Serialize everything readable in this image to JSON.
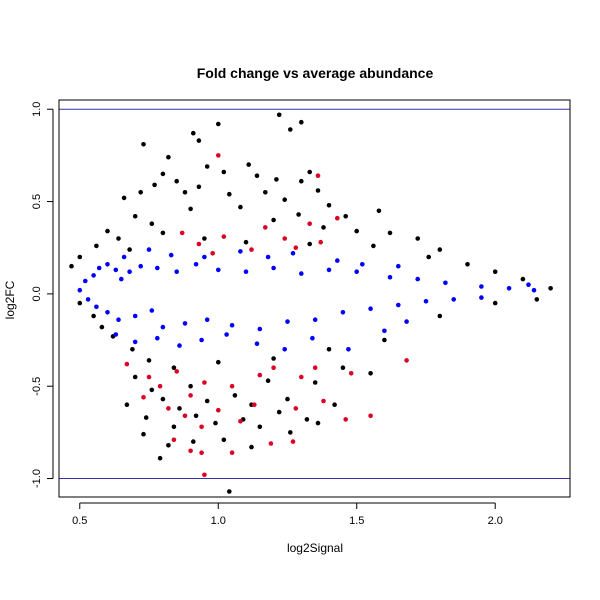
{
  "chart_data": {
    "type": "scatter",
    "title": "Fold change vs average abundance",
    "xlabel": "log2Signal",
    "ylabel": "log2FC",
    "xlim": [
      0.425,
      2.27
    ],
    "ylim": [
      -1.1,
      1.05
    ],
    "xticks": [
      0.5,
      1.0,
      1.5,
      2.0
    ],
    "xtick_labels": [
      "0.5",
      "1.0",
      "1.5",
      "2.0"
    ],
    "yticks": [
      -1.0,
      -0.5,
      0.0,
      0.5,
      1.0
    ],
    "ytick_labels": [
      "-1.0",
      "-0.5",
      "0.0",
      "0.5",
      "1.0"
    ],
    "grid": false,
    "reference_lines": [
      {
        "axis": "y",
        "value": 1.0,
        "color": "#3333aa"
      },
      {
        "axis": "y",
        "value": -1.0,
        "color": "#3333aa"
      }
    ],
    "series_colors": {
      "black": "#000000",
      "blue": "#0000ff",
      "red": "#dd0022"
    },
    "series": [
      {
        "color": "#000000",
        "points": [
          [
            0.73,
            0.81
          ],
          [
            0.82,
            0.74
          ],
          [
            0.91,
            0.87
          ],
          [
            0.93,
            0.83
          ],
          [
            1.0,
            0.92
          ],
          [
            1.22,
            0.97
          ],
          [
            1.3,
            0.93
          ],
          [
            1.26,
            0.89
          ],
          [
            0.8,
            0.65
          ],
          [
            0.85,
            0.61
          ],
          [
            0.96,
            0.69
          ],
          [
            1.02,
            0.66
          ],
          [
            1.11,
            0.7
          ],
          [
            1.14,
            0.64
          ],
          [
            1.21,
            0.62
          ],
          [
            1.3,
            0.61
          ],
          [
            1.33,
            0.66
          ],
          [
            1.36,
            0.56
          ],
          [
            0.66,
            0.52
          ],
          [
            0.72,
            0.55
          ],
          [
            0.77,
            0.59
          ],
          [
            0.88,
            0.55
          ],
          [
            0.93,
            0.58
          ],
          [
            1.04,
            0.54
          ],
          [
            1.17,
            0.55
          ],
          [
            1.24,
            0.51
          ],
          [
            1.4,
            0.48
          ],
          [
            1.46,
            0.42
          ],
          [
            1.58,
            0.45
          ],
          [
            0.6,
            0.34
          ],
          [
            0.7,
            0.42
          ],
          [
            0.76,
            0.38
          ],
          [
            0.9,
            0.46
          ],
          [
            1.08,
            0.47
          ],
          [
            1.2,
            0.4
          ],
          [
            1.29,
            0.43
          ],
          [
            1.38,
            0.36
          ],
          [
            1.5,
            0.34
          ],
          [
            1.62,
            0.33
          ],
          [
            1.72,
            0.3
          ],
          [
            1.8,
            0.24
          ],
          [
            0.47,
            0.15
          ],
          [
            0.5,
            0.2
          ],
          [
            0.56,
            0.26
          ],
          [
            0.64,
            0.3
          ],
          [
            0.68,
            0.24
          ],
          [
            0.8,
            0.33
          ],
          [
            0.95,
            0.3
          ],
          [
            1.1,
            0.28
          ],
          [
            1.33,
            0.27
          ],
          [
            1.56,
            0.26
          ],
          [
            1.76,
            0.2
          ],
          [
            1.9,
            0.16
          ],
          [
            2.0,
            0.12
          ],
          [
            2.1,
            0.08
          ],
          [
            2.2,
            0.03
          ],
          [
            0.5,
            -0.05
          ],
          [
            0.55,
            -0.12
          ],
          [
            0.58,
            -0.18
          ],
          [
            0.62,
            -0.23
          ],
          [
            0.69,
            -0.3
          ],
          [
            0.75,
            -0.36
          ],
          [
            0.84,
            -0.4
          ],
          [
            1.0,
            -0.37
          ],
          [
            1.2,
            -0.35
          ],
          [
            1.4,
            -0.3
          ],
          [
            1.6,
            -0.25
          ],
          [
            1.8,
            -0.12
          ],
          [
            2.0,
            -0.05
          ],
          [
            2.15,
            -0.03
          ],
          [
            0.7,
            -0.45
          ],
          [
            0.76,
            -0.52
          ],
          [
            0.8,
            -0.57
          ],
          [
            0.86,
            -0.62
          ],
          [
            0.9,
            -0.5
          ],
          [
            0.96,
            -0.58
          ],
          [
            1.06,
            -0.55
          ],
          [
            1.12,
            -0.6
          ],
          [
            1.18,
            -0.47
          ],
          [
            1.25,
            -0.57
          ],
          [
            1.35,
            -0.48
          ],
          [
            1.45,
            -0.4
          ],
          [
            1.55,
            -0.43
          ],
          [
            0.67,
            -0.6
          ],
          [
            0.74,
            -0.67
          ],
          [
            0.84,
            -0.72
          ],
          [
            0.92,
            -0.66
          ],
          [
            0.99,
            -0.7
          ],
          [
            1.09,
            -0.68
          ],
          [
            1.15,
            -0.72
          ],
          [
            1.22,
            -0.64
          ],
          [
            1.32,
            -0.68
          ],
          [
            1.42,
            -0.6
          ],
          [
            0.73,
            -0.76
          ],
          [
            0.82,
            -0.82
          ],
          [
            0.91,
            -0.8
          ],
          [
            1.02,
            -0.79
          ],
          [
            1.12,
            -0.83
          ],
          [
            1.26,
            -0.75
          ],
          [
            1.36,
            -0.7
          ],
          [
            0.79,
            -0.89
          ],
          [
            1.04,
            -1.07
          ]
        ]
      },
      {
        "color": "#dd0022",
        "points": [
          [
            1.0,
            0.75
          ],
          [
            1.36,
            0.64
          ],
          [
            0.93,
            0.27
          ],
          [
            1.02,
            0.31
          ],
          [
            1.12,
            0.24
          ],
          [
            1.17,
            0.36
          ],
          [
            1.24,
            0.3
          ],
          [
            1.28,
            0.25
          ],
          [
            1.33,
            0.38
          ],
          [
            1.37,
            0.28
          ],
          [
            1.43,
            0.41
          ],
          [
            0.87,
            0.33
          ],
          [
            0.98,
            0.22
          ],
          [
            0.67,
            -0.38
          ],
          [
            0.75,
            -0.45
          ],
          [
            0.79,
            -0.5
          ],
          [
            0.85,
            -0.42
          ],
          [
            0.9,
            -0.55
          ],
          [
            0.95,
            -0.48
          ],
          [
            1.05,
            -0.5
          ],
          [
            1.15,
            -0.44
          ],
          [
            1.2,
            -0.4
          ],
          [
            1.3,
            -0.45
          ],
          [
            1.35,
            -0.4
          ],
          [
            1.48,
            -0.43
          ],
          [
            1.68,
            -0.36
          ],
          [
            0.73,
            -0.56
          ],
          [
            0.82,
            -0.62
          ],
          [
            0.88,
            -0.66
          ],
          [
            0.94,
            -0.72
          ],
          [
            1.0,
            -0.63
          ],
          [
            1.08,
            -0.69
          ],
          [
            1.13,
            -0.6
          ],
          [
            1.28,
            -0.62
          ],
          [
            1.38,
            -0.58
          ],
          [
            1.46,
            -0.68
          ],
          [
            1.55,
            -0.66
          ],
          [
            0.84,
            -0.79
          ],
          [
            0.9,
            -0.85
          ],
          [
            0.94,
            -0.86
          ],
          [
            1.05,
            -0.86
          ],
          [
            1.19,
            -0.81
          ],
          [
            1.27,
            -0.8
          ],
          [
            0.95,
            -0.98
          ]
        ]
      },
      {
        "color": "#0000ff",
        "points": [
          [
            0.52,
            0.07
          ],
          [
            0.55,
            0.1
          ],
          [
            0.57,
            0.14
          ],
          [
            0.6,
            0.16
          ],
          [
            0.63,
            0.13
          ],
          [
            0.65,
            0.08
          ],
          [
            0.68,
            0.12
          ],
          [
            0.72,
            0.15
          ],
          [
            0.78,
            0.14
          ],
          [
            0.85,
            0.12
          ],
          [
            0.92,
            0.16
          ],
          [
            1.0,
            0.13
          ],
          [
            1.1,
            0.12
          ],
          [
            1.2,
            0.14
          ],
          [
            1.3,
            0.11
          ],
          [
            1.4,
            0.13
          ],
          [
            1.5,
            0.12
          ],
          [
            1.62,
            0.09
          ],
          [
            1.72,
            0.08
          ],
          [
            1.82,
            0.06
          ],
          [
            1.95,
            0.04
          ],
          [
            2.05,
            0.03
          ],
          [
            2.12,
            0.05
          ],
          [
            2.14,
            0.02
          ],
          [
            0.5,
            0.02
          ],
          [
            0.53,
            -0.03
          ],
          [
            0.56,
            -0.07
          ],
          [
            0.6,
            -0.1
          ],
          [
            0.64,
            -0.14
          ],
          [
            0.7,
            -0.12
          ],
          [
            0.76,
            -0.09
          ],
          [
            0.8,
            -0.18
          ],
          [
            0.88,
            -0.16
          ],
          [
            0.96,
            -0.14
          ],
          [
            1.05,
            -0.17
          ],
          [
            1.15,
            -0.19
          ],
          [
            1.25,
            -0.15
          ],
          [
            1.35,
            -0.14
          ],
          [
            1.45,
            -0.1
          ],
          [
            1.55,
            -0.08
          ],
          [
            1.65,
            -0.06
          ],
          [
            1.75,
            -0.04
          ],
          [
            1.85,
            -0.03
          ],
          [
            1.95,
            -0.02
          ],
          [
            0.63,
            -0.22
          ],
          [
            0.7,
            -0.26
          ],
          [
            0.78,
            -0.24
          ],
          [
            0.86,
            -0.28
          ],
          [
            0.94,
            -0.25
          ],
          [
            1.03,
            -0.22
          ],
          [
            1.14,
            -0.27
          ],
          [
            1.24,
            -0.3
          ],
          [
            1.34,
            -0.24
          ],
          [
            1.47,
            -0.3
          ],
          [
            1.6,
            -0.2
          ],
          [
            1.68,
            -0.15
          ],
          [
            0.66,
            0.2
          ],
          [
            0.75,
            0.24
          ],
          [
            0.83,
            0.21
          ],
          [
            0.95,
            0.2
          ],
          [
            1.08,
            0.23
          ],
          [
            1.18,
            0.2
          ],
          [
            1.27,
            0.22
          ],
          [
            1.43,
            0.18
          ],
          [
            1.52,
            0.16
          ],
          [
            1.65,
            0.15
          ]
        ]
      }
    ]
  }
}
